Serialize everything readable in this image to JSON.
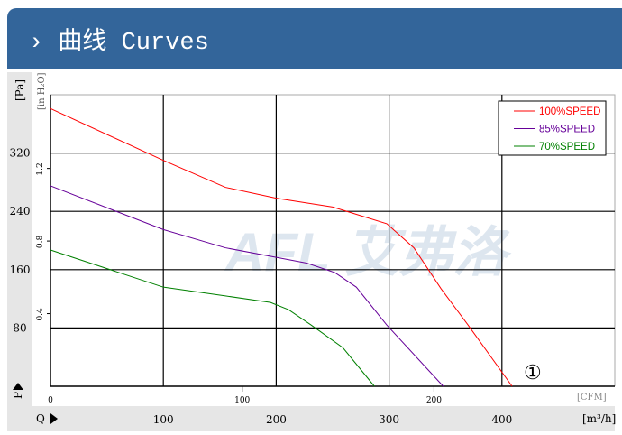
{
  "header": {
    "chevron": "›",
    "title": "曲线 Curves"
  },
  "watermark": "AFL 艾弗洛",
  "chart_data": {
    "type": "line",
    "title": "",
    "xlabel": "[m³/h]",
    "xlabel_secondary": "[CFM]",
    "ylabel": "[Pa]",
    "ylabel_secondary": "[in H₂O]",
    "x_axis_symbol": "Q",
    "y_axis_symbol": "P",
    "xlim": [
      0,
      500
    ],
    "ylim": [
      0,
      400
    ],
    "x_ticks": [
      100,
      200,
      300,
      400
    ],
    "y_ticks": [
      80,
      160,
      240,
      320
    ],
    "cfm_ticks": [
      0,
      100,
      200
    ],
    "inh2o_ticks": [
      0.4,
      0.8,
      1.2
    ],
    "grid": true,
    "legend_position": "top-right",
    "annotation": "①",
    "series": [
      {
        "name": "100%SPEED",
        "color": "#ff0000",
        "points": [
          [
            0,
            381
          ],
          [
            100,
            310
          ],
          [
            155,
            273
          ],
          [
            200,
            258
          ],
          [
            250,
            246
          ],
          [
            298,
            223
          ],
          [
            322,
            190
          ],
          [
            346,
            134
          ],
          [
            370,
            84
          ],
          [
            409,
            0
          ]
        ]
      },
      {
        "name": "85%SPEED",
        "color": "#660099",
        "points": [
          [
            0,
            275
          ],
          [
            100,
            215
          ],
          [
            155,
            190
          ],
          [
            200,
            177
          ],
          [
            227,
            169
          ],
          [
            252,
            156
          ],
          [
            271,
            136
          ],
          [
            298,
            84
          ],
          [
            348,
            0
          ]
        ]
      },
      {
        "name": "70%SPEED",
        "color": "#008000",
        "points": [
          [
            0,
            187
          ],
          [
            100,
            136
          ],
          [
            155,
            124
          ],
          [
            195,
            115
          ],
          [
            211,
            105
          ],
          [
            231,
            84
          ],
          [
            259,
            53
          ],
          [
            287,
            0
          ]
        ]
      }
    ]
  }
}
